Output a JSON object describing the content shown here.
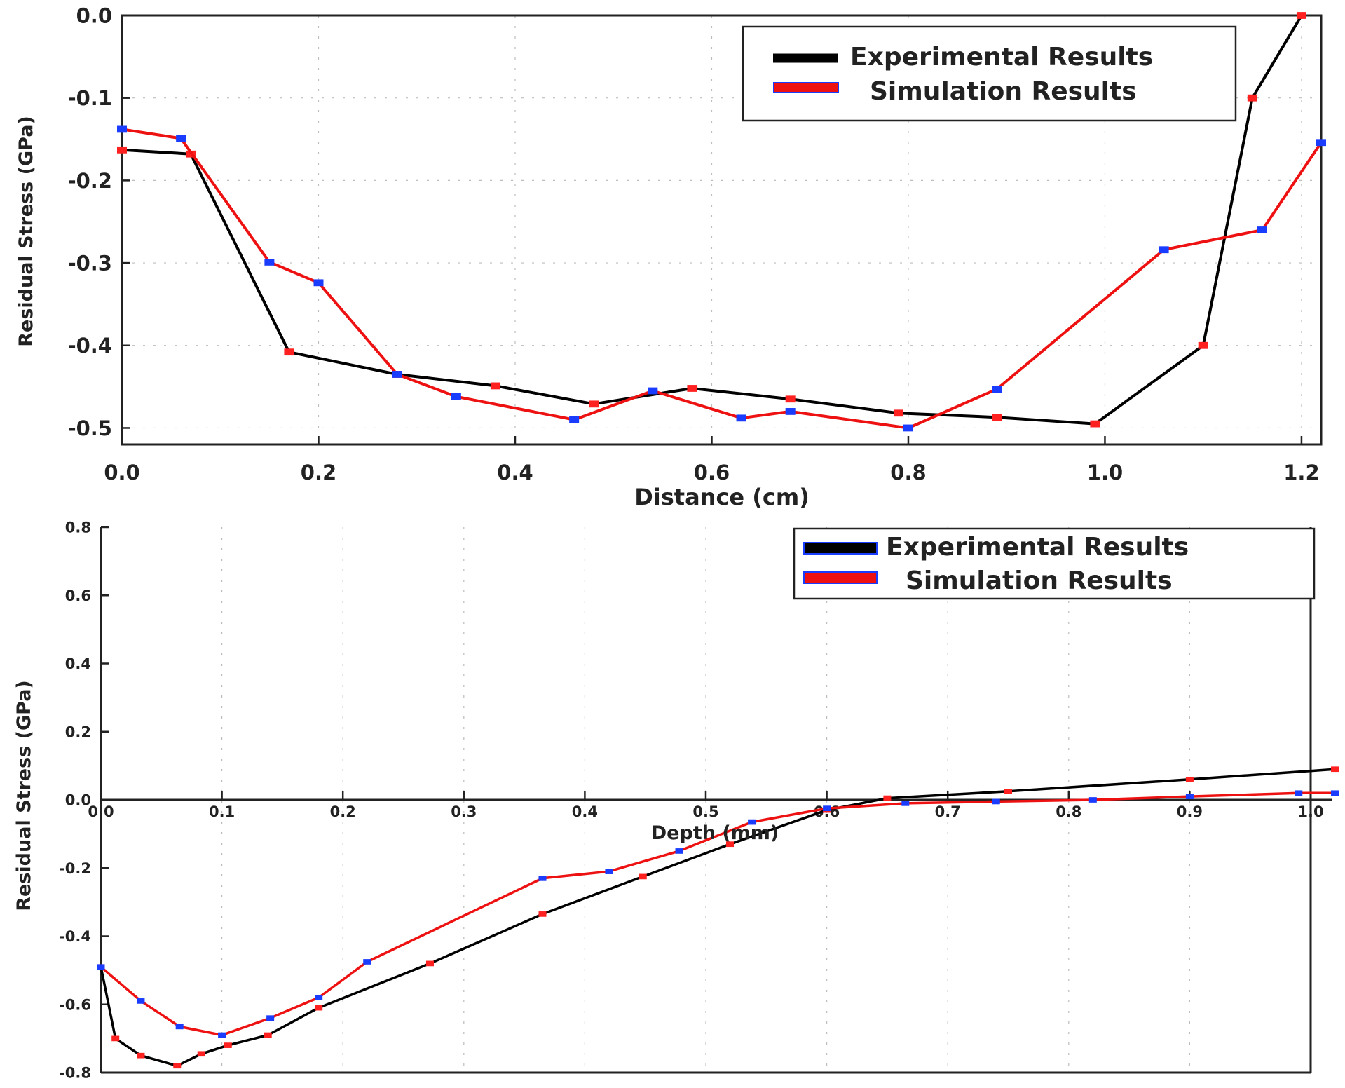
{
  "chart_data": [
    {
      "type": "line",
      "title": "",
      "xlabel": "Distance (cm)",
      "ylabel": "Residual Stress (GPa)",
      "xlim": [
        0.0,
        1.22
      ],
      "ylim": [
        -0.52,
        0.0
      ],
      "xticks": [
        "0.0",
        "0.2",
        "0.4",
        "0.6",
        "0.8",
        "1.0",
        "1.2"
      ],
      "xtick_values": [
        0.0,
        0.2,
        0.4,
        0.6,
        0.8,
        1.0,
        1.2
      ],
      "yticks": [
        "0.0",
        "-0.1",
        "-0.2",
        "-0.3",
        "-0.4",
        "-0.5"
      ],
      "ytick_values": [
        0.0,
        -0.1,
        -0.2,
        -0.3,
        -0.4,
        -0.5
      ],
      "legend": {
        "position": "top-right",
        "entries": [
          "Experimental Results",
          "Simulation Results"
        ]
      },
      "series": [
        {
          "name": "Experimental Results",
          "color": "#000000",
          "marker_color": "#ff2020",
          "x": [
            0.0,
            0.07,
            0.17,
            0.28,
            0.38,
            0.48,
            0.58,
            0.68,
            0.79,
            0.89,
            0.99,
            1.1,
            1.15,
            1.2
          ],
          "y": [
            -0.163,
            -0.168,
            -0.408,
            -0.435,
            -0.449,
            -0.471,
            -0.452,
            -0.465,
            -0.482,
            -0.487,
            -0.495,
            -0.4,
            -0.1,
            0.0
          ]
        },
        {
          "name": "Simulation Results",
          "color": "#ee1111",
          "marker_color": "#1a3cff",
          "x": [
            0.0,
            0.06,
            0.15,
            0.2,
            0.28,
            0.34,
            0.46,
            0.54,
            0.63,
            0.68,
            0.8,
            0.89,
            1.06,
            1.16,
            1.22
          ],
          "y": [
            -0.138,
            -0.149,
            -0.299,
            -0.324,
            -0.435,
            -0.462,
            -0.49,
            -0.455,
            -0.488,
            -0.48,
            -0.5,
            -0.453,
            -0.284,
            -0.26,
            -0.154
          ]
        }
      ]
    },
    {
      "type": "line",
      "title": "",
      "xlabel": "Depth (mm)",
      "ylabel": "Residual Stress (GPa)",
      "xlim": [
        0.0,
        1.0
      ],
      "ylim": [
        -0.8,
        0.8
      ],
      "xticks": [
        "0.0",
        "0.1",
        "0.2",
        "0.3",
        "0.4",
        "0.5",
        "0.6",
        "0.7",
        "0.8",
        "0.9",
        "1.0"
      ],
      "xtick_values": [
        0.0,
        0.1,
        0.2,
        0.3,
        0.4,
        0.5,
        0.6,
        0.7,
        0.8,
        0.9,
        1.0
      ],
      "yticks": [
        "0.8",
        "0.6",
        "0.4",
        "0.2",
        "0.0",
        "-0.2",
        "-0.4",
        "-0.6",
        "-0.8"
      ],
      "ytick_values": [
        0.8,
        0.6,
        0.4,
        0.2,
        0.0,
        -0.2,
        -0.4,
        -0.6,
        -0.8
      ],
      "legend": {
        "position": "top-right",
        "entries": [
          "Experimental Results",
          "Simulation Results"
        ]
      },
      "series": [
        {
          "name": "Experimental Results",
          "color": "#000000",
          "marker_color": "#ff2020",
          "x": [
            0.0,
            0.012,
            0.033,
            0.063,
            0.083,
            0.105,
            0.138,
            0.18,
            0.272,
            0.365,
            0.448,
            0.52,
            0.6,
            0.65,
            0.75,
            0.9,
            1.02
          ],
          "y": [
            -0.49,
            -0.7,
            -0.75,
            -0.78,
            -0.745,
            -0.72,
            -0.69,
            -0.61,
            -0.48,
            -0.335,
            -0.225,
            -0.13,
            -0.03,
            0.005,
            0.025,
            0.06,
            0.09
          ]
        },
        {
          "name": "Simulation Results",
          "color": "#ee1111",
          "marker_color": "#1a3cff",
          "x": [
            0.0,
            0.033,
            0.065,
            0.1,
            0.14,
            0.18,
            0.22,
            0.365,
            0.42,
            0.478,
            0.538,
            0.6,
            0.665,
            0.74,
            0.82,
            0.9,
            0.99,
            1.02
          ],
          "y": [
            -0.49,
            -0.59,
            -0.665,
            -0.69,
            -0.64,
            -0.58,
            -0.475,
            -0.23,
            -0.21,
            -0.15,
            -0.065,
            -0.025,
            -0.01,
            -0.005,
            0.0,
            0.01,
            0.02,
            0.02
          ]
        }
      ]
    }
  ]
}
